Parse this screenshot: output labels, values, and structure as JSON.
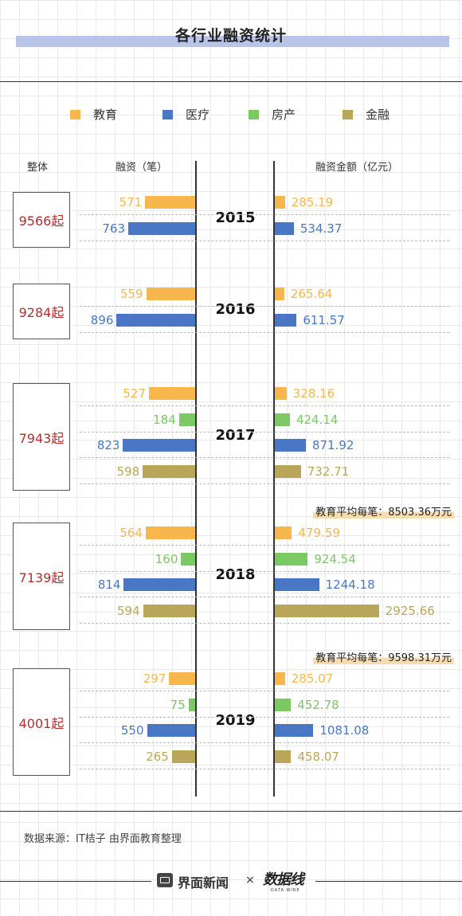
{
  "title": "各行业融资统计",
  "legend": [
    {
      "label": "教育",
      "color": "#f8b74d"
    },
    {
      "label": "医疗",
      "color": "#4a77c5"
    },
    {
      "label": "房产",
      "color": "#7cc862"
    },
    {
      "label": "金融",
      "color": "#b9a658"
    }
  ],
  "headers": {
    "overall": "整体",
    "count": "融资（笔）",
    "amount": "融资金额（亿元）"
  },
  "chart_data": {
    "type": "bar",
    "title": "各行业融资统计",
    "series_names": [
      "教育",
      "房产",
      "医疗",
      "金融"
    ],
    "years": [
      {
        "year": "2015",
        "total": "9566起",
        "rows": [
          {
            "industry": "教育",
            "count": 571,
            "amount": 285.19
          },
          {
            "industry": "医疗",
            "count": 763,
            "amount": 534.37
          }
        ]
      },
      {
        "year": "2016",
        "total": "9284起",
        "rows": [
          {
            "industry": "教育",
            "count": 559,
            "amount": 265.64
          },
          {
            "industry": "医疗",
            "count": 896,
            "amount": 611.57
          }
        ]
      },
      {
        "year": "2017",
        "total": "7943起",
        "rows": [
          {
            "industry": "教育",
            "count": 527,
            "amount": 328.16
          },
          {
            "industry": "房产",
            "count": 184,
            "amount": 424.14
          },
          {
            "industry": "医疗",
            "count": 823,
            "amount": 871.92
          },
          {
            "industry": "金融",
            "count": 598,
            "amount": 732.71
          }
        ]
      },
      {
        "year": "2018",
        "total": "7139起",
        "annotation": "教育平均每笔：8503.36万元",
        "rows": [
          {
            "industry": "教育",
            "count": 564,
            "amount": 479.59
          },
          {
            "industry": "房产",
            "count": 160,
            "amount": 924.54
          },
          {
            "industry": "医疗",
            "count": 814,
            "amount": 1244.18
          },
          {
            "industry": "金融",
            "count": 594,
            "amount": 2925.66
          }
        ]
      },
      {
        "year": "2019",
        "total": "4001起",
        "annotation": "教育平均每笔：9598.31万元",
        "rows": [
          {
            "industry": "教育",
            "count": 297,
            "amount": 285.07
          },
          {
            "industry": "房产",
            "count": 75,
            "amount": 452.78
          },
          {
            "industry": "医疗",
            "count": 550,
            "amount": 1081.08
          },
          {
            "industry": "金融",
            "count": 265,
            "amount": 458.07
          }
        ]
      }
    ]
  },
  "source": "数据来源：IT桔子 由界面教育整理",
  "footer": {
    "brand": "界面新闻",
    "separator": "×",
    "partner": "数据线",
    "partner_sub": "DATA WIRE"
  }
}
